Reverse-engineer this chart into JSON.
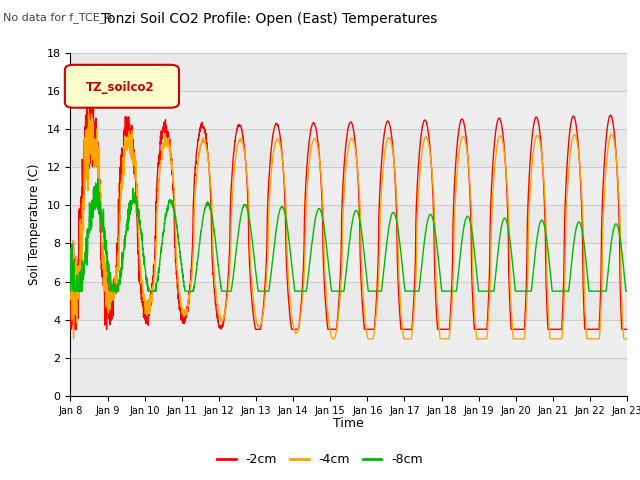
{
  "title": "Tonzi Soil CO2 Profile: Open (East) Temperatures",
  "subtitle": "No data for f_TCE_4",
  "ylabel": "Soil Temperature (C)",
  "xlabel": "Time",
  "legend_label": "TZ_soilco2",
  "ylim": [
    0,
    18
  ],
  "series_labels": [
    "-2cm",
    "-4cm",
    "-8cm"
  ],
  "series_colors": [
    "#ff0000",
    "#ffa500",
    "#00bb00"
  ],
  "xtick_labels": [
    "Jan 8",
    "Jan 9",
    "Jan 10",
    "Jan 11",
    "Jan 12",
    "Jan 13",
    "Jan 14",
    "Jan 15",
    "Jan 16",
    "Jan 17",
    "Jan 18",
    "Jan 19",
    "Jan 20",
    "Jan 21",
    "Jan 22",
    "Jan 23"
  ],
  "grid_color": "#cccccc",
  "background_color": "#ebebeb",
  "plot_bg_light": "#f5f5f5"
}
